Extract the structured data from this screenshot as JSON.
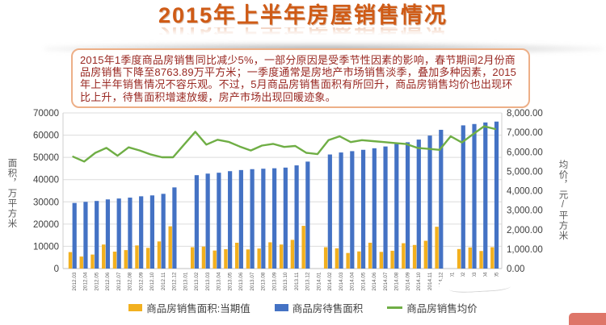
{
  "title": "2015年上半年房屋销售情况",
  "annotation": {
    "text": "2015年1季度商品房销售同比减少5%，一部分原因是受季节性因素的影响，春节期间2月份商品房销售下降至8763.89万平方米；一季度通常是房地产市场销售淡季，叠加多种因素，2015年上半年销售情况不容乐观。不过，5月商品房销售面积有所回升，商品房销售均价也出现环比上升，待售面积增速放缓，房产市场出现回暖迹象。"
  },
  "chart_data": {
    "type": "combo",
    "categories": [
      "2012.03",
      "2012.04",
      "2012.05",
      "2012.06",
      "2012.07",
      "2012.08",
      "2012.09",
      "2012.10",
      "2012.11",
      "2012.12",
      "2013.01",
      "2013.02",
      "2013.03",
      "2013.04",
      "2013.05",
      "2013.06",
      "2013.07",
      "2013.08",
      "2013.09",
      "2013.10",
      "2013.11",
      "2013.12",
      "2014.01",
      "2014.02",
      "2014.03",
      "2014.04",
      "2014.05",
      "2014.06",
      "2014.07",
      "2014.08",
      "2014.09",
      "2014.10",
      "2014.11",
      "2014.12",
      "2015.01",
      "2015.02",
      "2015.03",
      "2015.04",
      "2015.05"
    ],
    "series": [
      {
        "name": "商品房销售面积:当期值",
        "type": "bar",
        "axis": "left",
        "color": "#F2B01F",
        "values": [
          7400,
          5400,
          6300,
          10800,
          7600,
          8300,
          10400,
          9300,
          12200,
          19000,
          null,
          9600,
          9900,
          8100,
          8700,
          11600,
          8600,
          9000,
          11800,
          10800,
          12900,
          19200,
          null,
          9600,
          9100,
          7000,
          7700,
          11600,
          7500,
          8000,
          11400,
          10600,
          12500,
          18800,
          null,
          8764,
          9500,
          7900,
          9600
        ]
      },
      {
        "name": "商品房待售面积",
        "type": "bar",
        "axis": "left",
        "color": "#4472C4",
        "values": [
          29500,
          30000,
          30400,
          31100,
          31500,
          31900,
          32500,
          32900,
          33600,
          36500,
          null,
          42000,
          42700,
          43100,
          43800,
          44300,
          44700,
          44900,
          45100,
          45400,
          46400,
          48100,
          null,
          51300,
          52200,
          52800,
          53400,
          54100,
          54900,
          56100,
          56800,
          58000,
          59800,
          62400,
          null,
          64400,
          65000,
          65700,
          66100
        ]
      },
      {
        "name": "商品房销售均价",
        "type": "line",
        "axis": "right",
        "color": "#6FAE45",
        "values": [
          5750,
          5500,
          5950,
          6200,
          5800,
          6230,
          6070,
          5860,
          5720,
          5720,
          6375,
          7030,
          6370,
          6620,
          6510,
          6270,
          6070,
          6320,
          6410,
          6250,
          6300,
          5950,
          5880,
          6600,
          6800,
          6500,
          6600,
          6550,
          6500,
          6450,
          6400,
          6200,
          6150,
          6100,
          6800,
          6480,
          6900,
          7310,
          7170
        ]
      }
    ],
    "left_axis": {
      "title": "面积，万平方米",
      "min": 0,
      "max": 70000,
      "step": 10000,
      "tick_labels": [
        "0",
        "10000",
        "20000",
        "30000",
        "40000",
        "50000",
        "60000",
        "70000"
      ]
    },
    "right_axis": {
      "title": "均价，元/平方米",
      "min": 0,
      "max": 8000,
      "step": 1000,
      "tick_labels": [
        "0.00",
        "1,000.00",
        "2,000.00",
        "3,000.00",
        "4,000.00",
        "5,000.00",
        "6,000.00",
        "7,000.00",
        "8,000.00"
      ]
    },
    "grid": true,
    "legend_position": "bottom"
  }
}
